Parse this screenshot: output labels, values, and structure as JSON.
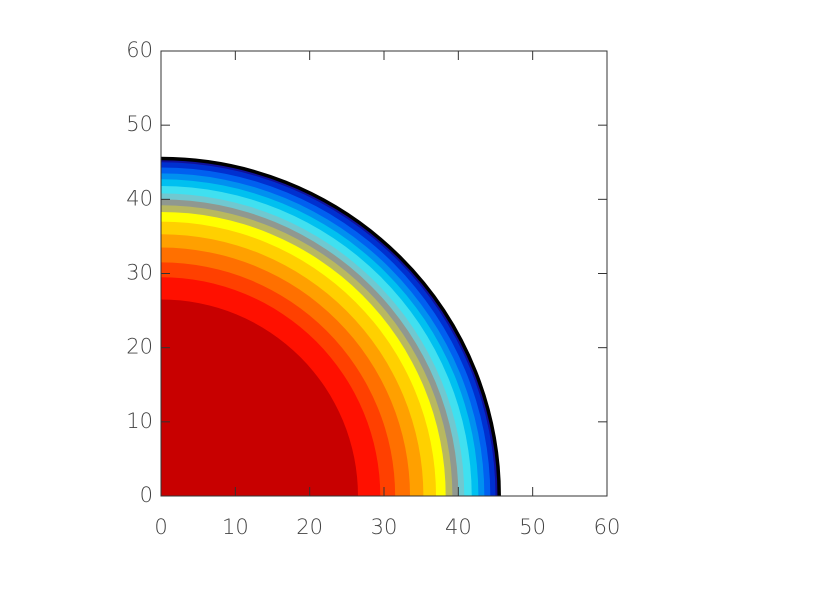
{
  "chart_data": {
    "type": "contour",
    "radii": [
      45.5,
      45,
      44.3,
      43.5,
      42.7,
      41.8,
      40.8,
      40,
      39.2,
      38.3,
      37,
      35.3,
      33.5,
      31.5,
      29.5,
      26.5
    ],
    "colors": [
      "#10109a",
      "#0030d0",
      "#0060f0",
      "#0090f0",
      "#00c0f0",
      "#40e0f0",
      "#70c8d0",
      "#909890",
      "#b8b860",
      "#ffff00",
      "#ffd000",
      "#ffa000",
      "#ff7000",
      "#ff4000",
      "#ff1000",
      "#c80000"
    ],
    "outline_color": "#000000",
    "xlim": [
      0,
      60
    ],
    "ylim": [
      0,
      60
    ],
    "xticks": [
      0,
      10,
      20,
      30,
      40,
      50,
      60
    ],
    "yticks": [
      0,
      10,
      20,
      30,
      40,
      50,
      60
    ]
  }
}
